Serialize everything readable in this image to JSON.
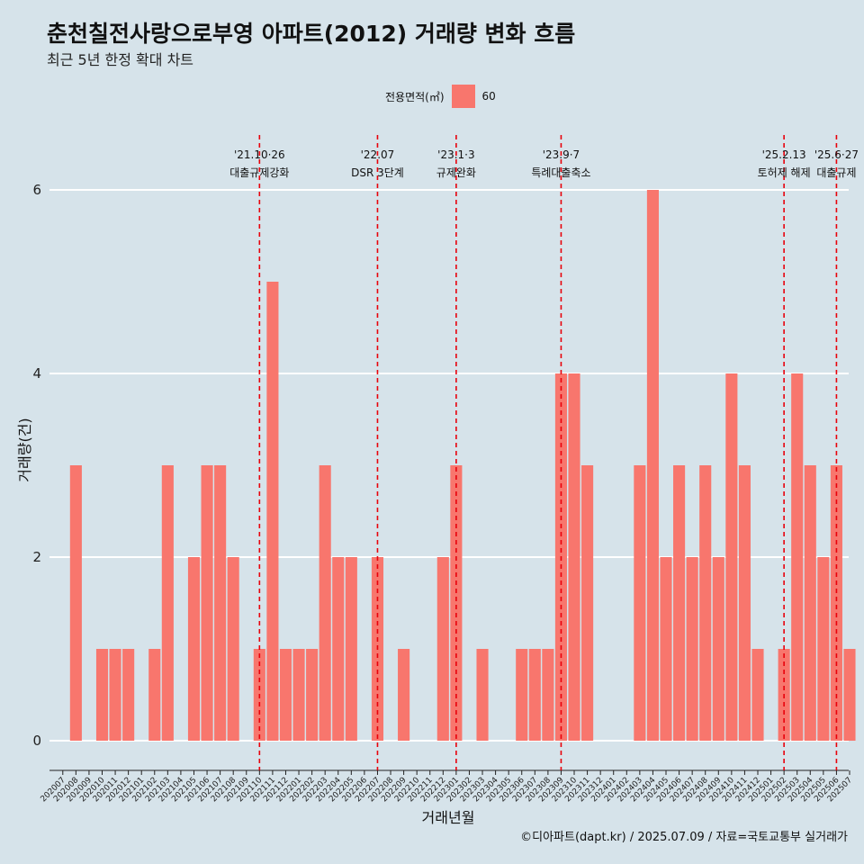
{
  "title": "춘천칠전사랑으로부영 아파트(2012) 거래량 변화 흐름",
  "subtitle": "최근 5년 한정 확대 차트",
  "legend": {
    "title": "전용면적(㎡)",
    "series_label": "60",
    "color": "#f8766d"
  },
  "caption": "©디아파트(dapt.kr) / 2025.07.09 / 자료=국토교통부 실거래가",
  "chart_data": {
    "type": "bar",
    "xlabel": "거래년월",
    "ylabel": "거래량(건)",
    "ylim": [
      0,
      6
    ],
    "yticks": [
      0,
      2,
      4,
      6
    ],
    "grid": true,
    "legend_position": "top",
    "bar_color": "#f8766d",
    "categories": [
      "202007",
      "202008",
      "202009",
      "202010",
      "202011",
      "202012",
      "202101",
      "202102",
      "202103",
      "202104",
      "202105",
      "202106",
      "202107",
      "202108",
      "202109",
      "202110",
      "202111",
      "202112",
      "202201",
      "202202",
      "202203",
      "202204",
      "202205",
      "202206",
      "202207",
      "202208",
      "202209",
      "202210",
      "202211",
      "202212",
      "202301",
      "202302",
      "202303",
      "202304",
      "202305",
      "202306",
      "202307",
      "202308",
      "202309",
      "202310",
      "202311",
      "202312",
      "202401",
      "202402",
      "202403",
      "202404",
      "202405",
      "202406",
      "202407",
      "202408",
      "202409",
      "202410",
      "202411",
      "202412",
      "202501",
      "202502",
      "202503",
      "202504",
      "202505",
      "202506",
      "202507"
    ],
    "series": [
      {
        "name": "60",
        "values": [
          0,
          3,
          0,
          1,
          1,
          1,
          0,
          1,
          3,
          0,
          2,
          3,
          3,
          2,
          0,
          1,
          5,
          1,
          1,
          1,
          3,
          2,
          2,
          0,
          2,
          0,
          1,
          0,
          0,
          2,
          3,
          0,
          1,
          0,
          0,
          1,
          1,
          1,
          4,
          4,
          3,
          0,
          0,
          0,
          3,
          6,
          2,
          3,
          2,
          3,
          2,
          4,
          3,
          1,
          0,
          1,
          4,
          3,
          2,
          3,
          1
        ]
      }
    ],
    "annotations": [
      {
        "date": "202110",
        "line1": "'21.10·26",
        "line2": "대출규제강화"
      },
      {
        "date": "202207",
        "line1": "'22.07",
        "line2": "DSR 3단계"
      },
      {
        "date": "202301",
        "line1": "'23.1·3",
        "line2": "규제완화"
      },
      {
        "date": "202309",
        "line1": "'23.9·7",
        "line2": "특례대출축소"
      },
      {
        "date": "202502",
        "line1": "'25.2.13",
        "line2": "토허제 해제"
      },
      {
        "date": "202506",
        "line1": "'25.6·27",
        "line2": "대출규제"
      }
    ]
  }
}
